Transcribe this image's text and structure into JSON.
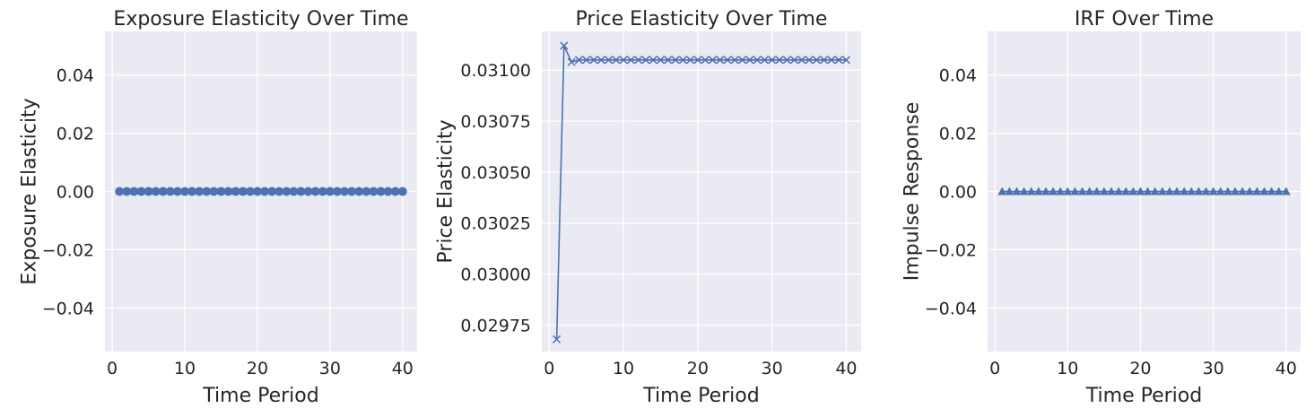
{
  "chart_data": [
    {
      "type": "line",
      "title": "Exposure Elasticity Over Time",
      "xlabel": "Time Period",
      "ylabel": "Exposure Elasticity",
      "marker": "circle",
      "color": "#4C72B0",
      "xlim": [
        -1,
        42
      ],
      "ylim": [
        -0.055,
        0.055
      ],
      "xticks": [
        0,
        10,
        20,
        30,
        40
      ],
      "yticks": [
        -0.04,
        -0.02,
        0.0,
        0.02,
        0.04
      ],
      "ytick_labels": [
        "−0.04",
        "−0.02",
        "0.00",
        "0.02",
        "0.04"
      ],
      "grid": true,
      "x": [
        1,
        2,
        3,
        4,
        5,
        6,
        7,
        8,
        9,
        10,
        11,
        12,
        13,
        14,
        15,
        16,
        17,
        18,
        19,
        20,
        21,
        22,
        23,
        24,
        25,
        26,
        27,
        28,
        29,
        30,
        31,
        32,
        33,
        34,
        35,
        36,
        37,
        38,
        39,
        40
      ],
      "values": [
        0,
        0,
        0,
        0,
        0,
        0,
        0,
        0,
        0,
        0,
        0,
        0,
        0,
        0,
        0,
        0,
        0,
        0,
        0,
        0,
        0,
        0,
        0,
        0,
        0,
        0,
        0,
        0,
        0,
        0,
        0,
        0,
        0,
        0,
        0,
        0,
        0,
        0,
        0,
        0
      ]
    },
    {
      "type": "line",
      "title": "Price Elasticity Over Time",
      "xlabel": "Time Period",
      "ylabel": "Price Elasticity",
      "marker": "x",
      "color": "#4C72B0",
      "xlim": [
        -1,
        42
      ],
      "ylim": [
        0.02962,
        0.03119
      ],
      "xticks": [
        0,
        10,
        20,
        30,
        40
      ],
      "yticks": [
        0.02975,
        0.03,
        0.03025,
        0.0305,
        0.03075,
        0.031
      ],
      "ytick_labels": [
        "0.02975",
        "0.03000",
        "0.03025",
        "0.03050",
        "0.03075",
        "0.03100"
      ],
      "grid": true,
      "x": [
        1,
        2,
        3,
        4,
        5,
        6,
        7,
        8,
        9,
        10,
        11,
        12,
        13,
        14,
        15,
        16,
        17,
        18,
        19,
        20,
        21,
        22,
        23,
        24,
        25,
        26,
        27,
        28,
        29,
        30,
        31,
        32,
        33,
        34,
        35,
        36,
        37,
        38,
        39,
        40
      ],
      "values": [
        0.02968,
        0.03112,
        0.03104,
        0.03105,
        0.03105,
        0.03105,
        0.03105,
        0.03105,
        0.03105,
        0.03105,
        0.03105,
        0.03105,
        0.03105,
        0.03105,
        0.03105,
        0.03105,
        0.03105,
        0.03105,
        0.03105,
        0.03105,
        0.03105,
        0.03105,
        0.03105,
        0.03105,
        0.03105,
        0.03105,
        0.03105,
        0.03105,
        0.03105,
        0.03105,
        0.03105,
        0.03105,
        0.03105,
        0.03105,
        0.03105,
        0.03105,
        0.03105,
        0.03105,
        0.03105,
        0.03105
      ]
    },
    {
      "type": "line",
      "title": "IRF Over Time",
      "xlabel": "Time Period",
      "ylabel": "Impulse Response",
      "marker": "triangle",
      "color": "#4C72B0",
      "xlim": [
        -1,
        42
      ],
      "ylim": [
        -0.055,
        0.055
      ],
      "xticks": [
        0,
        10,
        20,
        30,
        40
      ],
      "yticks": [
        -0.04,
        -0.02,
        0.0,
        0.02,
        0.04
      ],
      "ytick_labels": [
        "−0.04",
        "−0.02",
        "0.00",
        "0.02",
        "0.04"
      ],
      "grid": true,
      "x": [
        1,
        2,
        3,
        4,
        5,
        6,
        7,
        8,
        9,
        10,
        11,
        12,
        13,
        14,
        15,
        16,
        17,
        18,
        19,
        20,
        21,
        22,
        23,
        24,
        25,
        26,
        27,
        28,
        29,
        30,
        31,
        32,
        33,
        34,
        35,
        36,
        37,
        38,
        39,
        40
      ],
      "values": [
        0,
        0,
        0,
        0,
        0,
        0,
        0,
        0,
        0,
        0,
        0,
        0,
        0,
        0,
        0,
        0,
        0,
        0,
        0,
        0,
        0,
        0,
        0,
        0,
        0,
        0,
        0,
        0,
        0,
        0,
        0,
        0,
        0,
        0,
        0,
        0,
        0,
        0,
        0,
        0
      ]
    }
  ]
}
